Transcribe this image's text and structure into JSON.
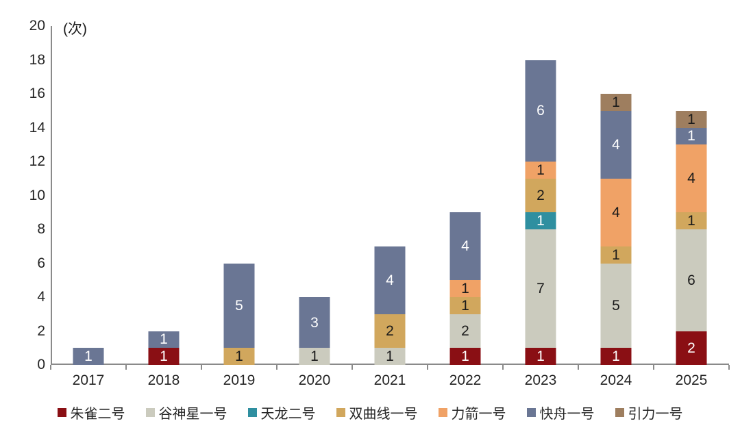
{
  "unit_label": "(次)",
  "chart_data": {
    "type": "bar",
    "stacked": true,
    "title": "",
    "ylabel": "(次)",
    "xlabel": "",
    "ylim": [
      0,
      20
    ],
    "ytick_step": 2,
    "grid": false,
    "legend_position": "bottom",
    "categories": [
      "2017",
      "2018",
      "2019",
      "2020",
      "2021",
      "2022",
      "2023",
      "2024",
      "2025"
    ],
    "series": [
      {
        "name": "朱雀二号",
        "color": "#8a0f14",
        "text_color": "#ffffff",
        "values": [
          0,
          1,
          0,
          0,
          0,
          1,
          1,
          1,
          2
        ]
      },
      {
        "name": "谷神星一号",
        "color": "#cbcbbe",
        "text_color": "#1a1a1a",
        "values": [
          0,
          0,
          0,
          1,
          1,
          2,
          7,
          5,
          6
        ]
      },
      {
        "name": "天龙二号",
        "color": "#2f8fa0",
        "text_color": "#ffffff",
        "values": [
          0,
          0,
          0,
          0,
          0,
          0,
          1,
          0,
          0
        ]
      },
      {
        "name": "双曲线一号",
        "color": "#d1a75d",
        "text_color": "#1a1a1a",
        "values": [
          0,
          0,
          1,
          0,
          2,
          1,
          2,
          1,
          1
        ]
      },
      {
        "name": "力箭一号",
        "color": "#f0a266",
        "text_color": "#1a1a1a",
        "values": [
          0,
          0,
          0,
          0,
          0,
          1,
          1,
          4,
          4
        ]
      },
      {
        "name": "快舟一号",
        "color": "#6a7694",
        "text_color": "#ffffff",
        "values": [
          1,
          1,
          5,
          3,
          4,
          4,
          6,
          4,
          1
        ]
      },
      {
        "name": "引力一号",
        "color": "#9e7e5f",
        "text_color": "#1a1a1a",
        "values": [
          0,
          0,
          0,
          0,
          0,
          0,
          0,
          1,
          1
        ]
      }
    ],
    "totals": [
      1,
      2,
      6,
      4,
      7,
      9,
      18,
      16,
      15
    ],
    "axis_color": "#8a8a8a"
  }
}
